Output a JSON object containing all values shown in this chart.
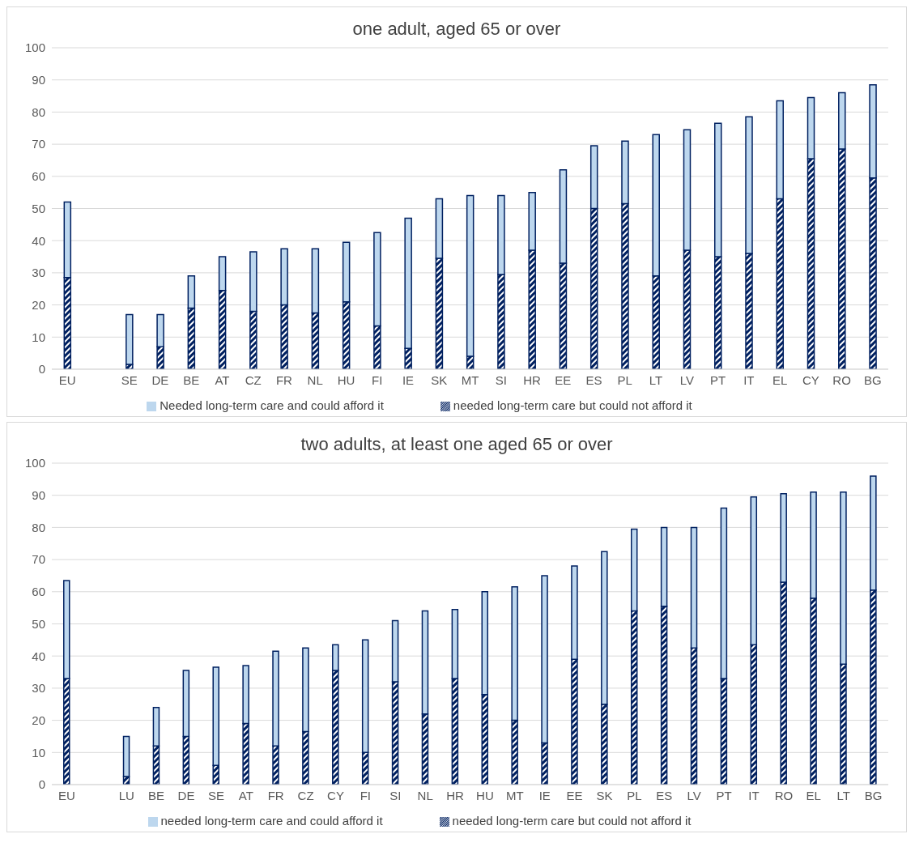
{
  "chart_data": [
    {
      "type": "bar",
      "title": "one adult, aged 65 or over",
      "stacked": true,
      "legend": "bottom",
      "grid": "y",
      "ylim": [
        0,
        100
      ],
      "yticks": [
        0,
        10,
        20,
        30,
        40,
        50,
        60,
        70,
        80,
        90,
        100
      ],
      "categories": [
        "EU",
        null,
        "SE",
        "DE",
        "BE",
        "AT",
        "CZ",
        "FR",
        "NL",
        "HU",
        "FI",
        "IE",
        "SK",
        "MT",
        "SI",
        "HR",
        "EE",
        "ES",
        "PL",
        "LT",
        "LV",
        "PT",
        "IT",
        "EL",
        "CY",
        "RO",
        "BG"
      ],
      "series": [
        {
          "name": "needed long-term care but could not afford it",
          "color": "#002060",
          "values": [
            28.5,
            null,
            1.5,
            7,
            19,
            24.5,
            18,
            20,
            17.5,
            21,
            13.5,
            6.5,
            34.5,
            4,
            29.5,
            37,
            33,
            50,
            51.5,
            29,
            37,
            35,
            36,
            53,
            65.5,
            68.5,
            59.5
          ]
        },
        {
          "name": "Needed long-term care and could afford it",
          "color": "#bdd7ee",
          "values": [
            23.5,
            null,
            15.5,
            10,
            10,
            10.5,
            18.5,
            17.5,
            20,
            18.5,
            29,
            40.5,
            18.5,
            50,
            24.5,
            18,
            29,
            19.5,
            19.5,
            44,
            37.5,
            41.5,
            42.5,
            30.5,
            19,
            17.5,
            29
          ]
        }
      ]
    },
    {
      "type": "bar",
      "title": "two adults, at least one aged 65 or over",
      "stacked": true,
      "legend": "bottom",
      "grid": "y",
      "ylim": [
        0,
        100
      ],
      "yticks": [
        0,
        10,
        20,
        30,
        40,
        50,
        60,
        70,
        80,
        90,
        100
      ],
      "categories": [
        "EU",
        null,
        "LU",
        "BE",
        "DE",
        "SE",
        "AT",
        "FR",
        "CZ",
        "CY",
        "FI",
        "SI",
        "NL",
        "HR",
        "HU",
        "MT",
        "IE",
        "EE",
        "SK",
        "PL",
        "ES",
        "LV",
        "PT",
        "IT",
        "RO",
        "EL",
        "LT",
        "BG"
      ],
      "series": [
        {
          "name": "needed long-term care but could not afford it",
          "color": "#002060",
          "values": [
            33,
            null,
            2.5,
            12,
            15,
            6,
            19,
            12,
            16.5,
            35.5,
            10,
            32,
            22,
            33,
            28,
            20,
            13,
            39,
            25,
            54,
            55.5,
            42.5,
            33,
            43.5,
            63,
            58,
            37.5,
            60.5
          ]
        },
        {
          "name": "needed long-term care and could afford it",
          "color": "#bdd7ee",
          "values": [
            30.5,
            null,
            12.5,
            12,
            20.5,
            30.5,
            18,
            29.5,
            26,
            8,
            35,
            19,
            32,
            21.5,
            32,
            41.5,
            52,
            29,
            47.5,
            25.5,
            24.5,
            37.5,
            53,
            46,
            27.5,
            33,
            53.5,
            35.5
          ]
        }
      ]
    }
  ]
}
